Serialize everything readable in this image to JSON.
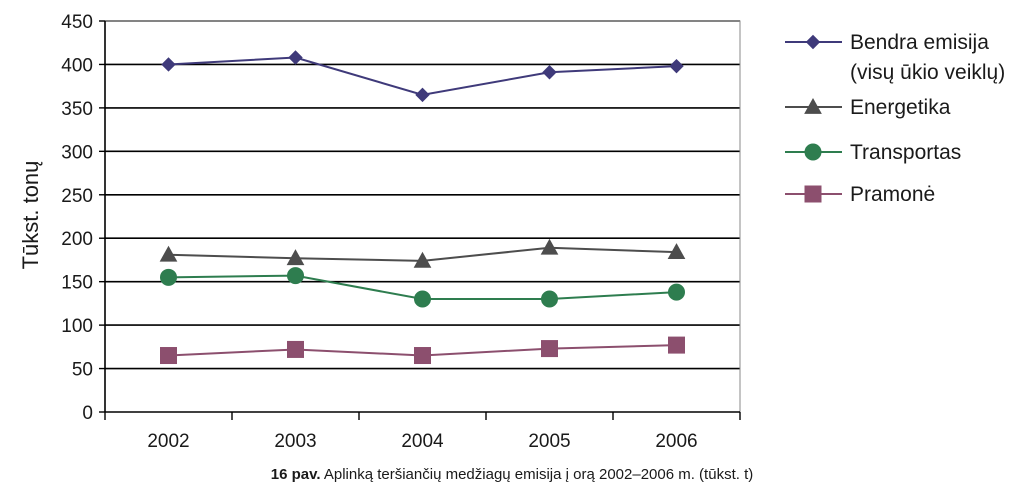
{
  "chart_data": {
    "type": "line",
    "ylabel": "Tūkst. tonų",
    "xlabel": "",
    "categories": [
      "2002",
      "2003",
      "2004",
      "2005",
      "2006"
    ],
    "ylim": [
      0,
      450
    ],
    "yticks": [
      0,
      50,
      100,
      150,
      200,
      250,
      300,
      350,
      400,
      450
    ],
    "grid": true,
    "legend_position": "right",
    "series": [
      {
        "name_line1": "Bendra emisija",
        "name_line2": "(visų ūkio veiklų)",
        "marker": "diamond",
        "color": "#3f3a7a",
        "values": [
          400,
          408,
          365,
          391,
          398
        ]
      },
      {
        "name_line1": "Energetika",
        "name_line2": "",
        "marker": "triangle",
        "color": "#4d4d4d",
        "values": [
          181,
          177,
          174,
          189,
          184
        ]
      },
      {
        "name_line1": "Transportas",
        "name_line2": "",
        "marker": "circle",
        "color": "#2e7d4f",
        "values": [
          155,
          157,
          130,
          130,
          138
        ]
      },
      {
        "name_line1": "Pramonė",
        "name_line2": "",
        "marker": "square",
        "color": "#8c4f6e",
        "values": [
          65,
          72,
          65,
          73,
          77
        ]
      }
    ]
  },
  "caption": {
    "label": "16 pav.",
    "text": " Aplinką teršiančių medžiagų emisija į orą 2002–2006 m. (tūkst. t)"
  }
}
